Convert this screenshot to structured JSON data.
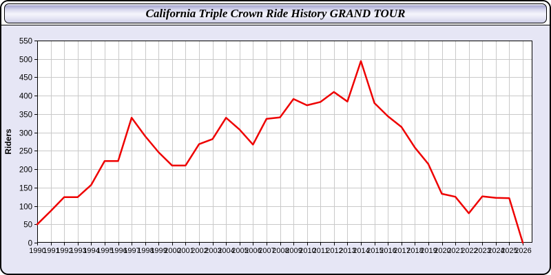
{
  "window": {
    "title": "California Triple Crown Ride History GRAND TOUR"
  },
  "chart_data": {
    "type": "line",
    "title": "California Triple Crown Ride History GRAND TOUR",
    "xlabel": "",
    "ylabel": "Riders",
    "x": [
      1990,
      1991,
      1992,
      1993,
      1994,
      1995,
      1996,
      1997,
      1998,
      1999,
      2000,
      2001,
      2002,
      2003,
      2004,
      2005,
      2006,
      2007,
      2008,
      2009,
      2010,
      2011,
      2012,
      2013,
      2014,
      2015,
      2016,
      2017,
      2018,
      2019,
      2020,
      2021,
      2022,
      2023,
      2024,
      2025,
      2026
    ],
    "series": [
      {
        "name": "Riders",
        "values": [
          50,
          86,
          124,
          124,
          157,
          222,
          222,
          340,
          290,
          246,
          210,
          210,
          268,
          282,
          340,
          308,
          267,
          337,
          341,
          391,
          374,
          383,
          410,
          384,
          494,
          380,
          344,
          315,
          259,
          214,
          133,
          125,
          80,
          126,
          122,
          121,
          0
        ]
      }
    ],
    "ylim": [
      0,
      550
    ],
    "ytick_step": 50,
    "xtick_every": 1,
    "grid": true,
    "legend": "none",
    "line_color": "#ee0000",
    "colors": {
      "page_bg": "#e6e6f5",
      "plot_bg": "#ffffff",
      "grid": "#c9c9c9",
      "axis": "#000000",
      "title_bar_top": "#a9a9d2",
      "title_bar_mid": "#f5f5fc"
    }
  }
}
